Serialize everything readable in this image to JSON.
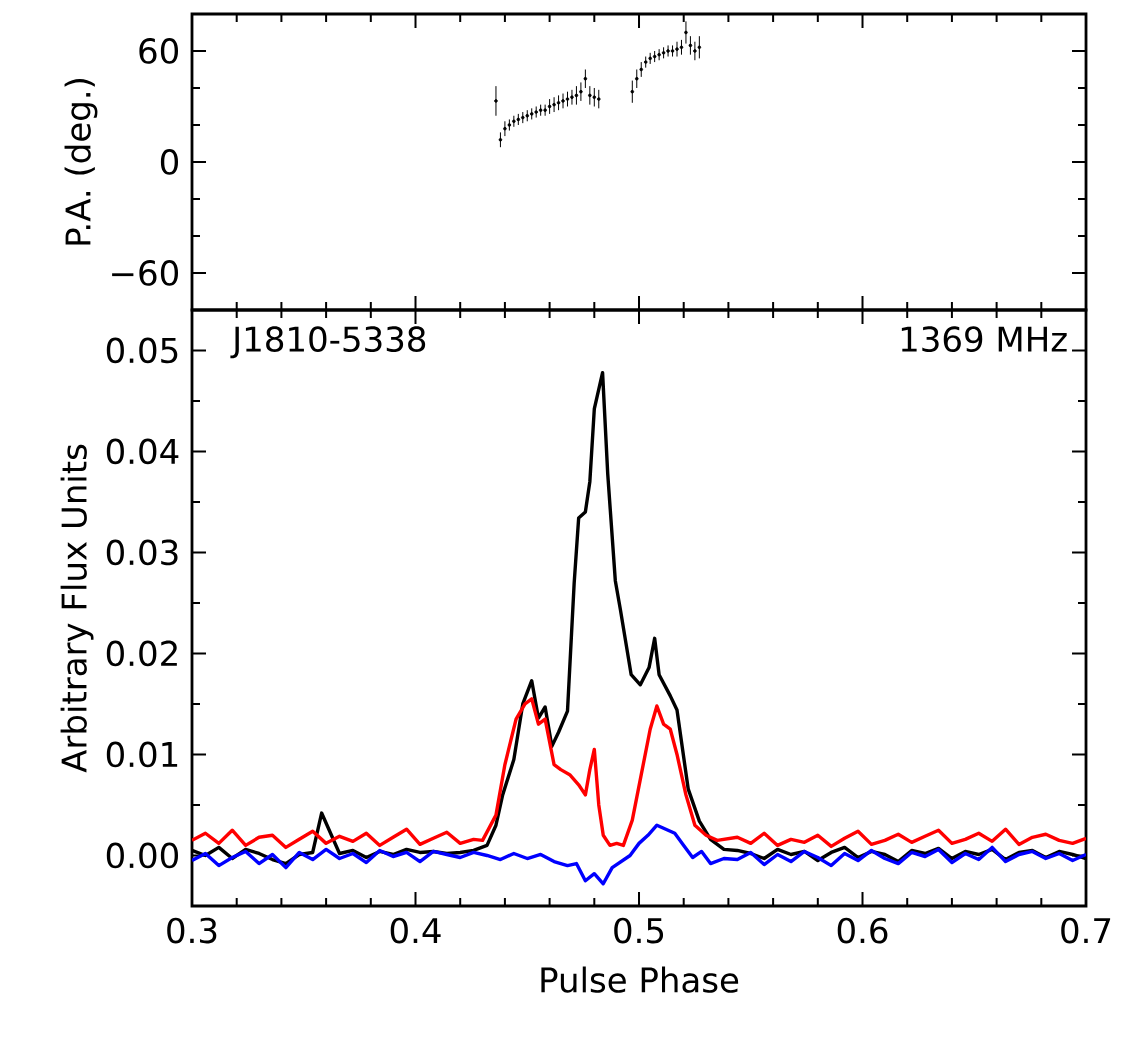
{
  "chart_data": [
    {
      "type": "scatter",
      "ylabel": "P.A. (deg.)",
      "xlim": [
        0.3,
        0.7
      ],
      "ylim": [
        -80,
        80
      ],
      "xticks": [
        0.3,
        0.4,
        0.5,
        0.6,
        0.7
      ],
      "yticks": [
        {
          "value": -60,
          "label": "−60"
        },
        0,
        60
      ],
      "tick_labels": "y",
      "marker": "circle",
      "series": [
        {
          "color": "#000000",
          "x": [
            0.436,
            0.438,
            0.44,
            0.442,
            0.444,
            0.446,
            0.448,
            0.45,
            0.452,
            0.454,
            0.456,
            0.458,
            0.46,
            0.462,
            0.464,
            0.466,
            0.468,
            0.47,
            0.472,
            0.474,
            0.476,
            0.478,
            0.48,
            0.482,
            0.497,
            0.499,
            0.501,
            0.503,
            0.505,
            0.507,
            0.509,
            0.511,
            0.513,
            0.515,
            0.517,
            0.519,
            0.521,
            0.523,
            0.525,
            0.527
          ],
          "values": [
            33,
            12,
            18,
            20,
            22,
            23,
            24,
            25,
            26,
            27,
            28,
            28,
            30,
            31,
            32,
            33,
            34,
            35,
            36,
            38,
            45,
            36,
            35,
            34,
            38,
            45,
            50,
            54,
            56,
            57,
            58,
            59,
            60,
            60,
            61,
            62,
            70,
            63,
            60,
            62
          ],
          "errors": [
            8,
            4,
            4,
            3,
            3,
            3,
            3,
            3,
            3,
            3,
            3,
            3,
            4,
            4,
            4,
            4,
            4,
            4,
            5,
            5,
            5,
            5,
            5,
            5,
            6,
            5,
            4,
            3,
            3,
            3,
            3,
            3,
            3,
            3,
            4,
            4,
            6,
            5,
            5,
            6
          ]
        }
      ]
    },
    {
      "type": "line",
      "xlabel": "Pulse Phase",
      "ylabel": "Arbitrary Flux Units",
      "xlim": [
        0.3,
        0.7
      ],
      "ylim": [
        -0.005,
        0.054
      ],
      "xticks": [
        0.3,
        0.4,
        0.5,
        0.6,
        0.7
      ],
      "yticks": [
        {
          "value": 0,
          "label": "0.00"
        },
        {
          "value": 0.01,
          "label": "0.01"
        },
        {
          "value": 0.02,
          "label": "0.02"
        },
        {
          "value": 0.03,
          "label": "0.03"
        },
        {
          "value": 0.04,
          "label": "0.04"
        },
        {
          "value": 0.05,
          "label": "0.05"
        }
      ],
      "annotations": [
        "J1810-5338",
        "1369 MHz"
      ],
      "marker": "none",
      "line_style": "solid",
      "series": [
        {
          "color": "#000000",
          "x": [
            0.3,
            0.306,
            0.312,
            0.318,
            0.324,
            0.33,
            0.336,
            0.342,
            0.348,
            0.354,
            0.358,
            0.366,
            0.372,
            0.378,
            0.384,
            0.39,
            0.396,
            0.402,
            0.408,
            0.414,
            0.42,
            0.426,
            0.432,
            0.436,
            0.439,
            0.444,
            0.448,
            0.452,
            0.455,
            0.458,
            0.461,
            0.464,
            0.468,
            0.471,
            0.473,
            0.476,
            0.478,
            0.48,
            0.4837,
            0.486,
            0.4894,
            0.4917,
            0.4965,
            0.5006,
            0.5045,
            0.507,
            0.509,
            0.514,
            0.517,
            0.522,
            0.527,
            0.532,
            0.538,
            0.544,
            0.55,
            0.556,
            0.562,
            0.568,
            0.574,
            0.58,
            0.586,
            0.592,
            0.598,
            0.604,
            0.61,
            0.616,
            0.622,
            0.628,
            0.634,
            0.64,
            0.646,
            0.652,
            0.658,
            0.664,
            0.67,
            0.676,
            0.682,
            0.688,
            0.694,
            0.7
          ],
          "values": [
            0.0005,
            0,
            0.0008,
            -0.0003,
            0.0006,
            0.0002,
            -0.0004,
            -0.0008,
            0.0001,
            0.0003,
            0.0042,
            0.0002,
            0.0005,
            -0.0002,
            0.0004,
            0.0001,
            0.0006,
            0.0003,
            0.0004,
            0.0002,
            0.0003,
            0.0005,
            0.001,
            0.003,
            0.006,
            0.0095,
            0.015,
            0.0173,
            0.0136,
            0.0147,
            0.0108,
            0.0122,
            0.0143,
            0.027,
            0.0334,
            0.034,
            0.037,
            0.0442,
            0.0478,
            0.0378,
            0.0272,
            0.0243,
            0.0179,
            0.0169,
            0.0186,
            0.0215,
            0.0179,
            0.0158,
            0.0144,
            0.0066,
            0.0034,
            0.0016,
            0.0006,
            0.0005,
            0.0002,
            -0.0003,
            0.0006,
            0.0001,
            0.0004,
            -0.0005,
            0.0003,
            0.0008,
            -0.0002,
            0.0004,
            0.0001,
            -0.0006,
            0.0005,
            0.0002,
            0.0007,
            -0.0003,
            0.0004,
            0.0001,
            0.0006,
            -0.0004,
            0.0003,
            0.0005,
            -0.0002,
            0.0004,
            0.0001,
            -0.0003
          ]
        },
        {
          "color": "#ff0000",
          "x": [
            0.3,
            0.306,
            0.312,
            0.318,
            0.324,
            0.33,
            0.336,
            0.342,
            0.348,
            0.354,
            0.36,
            0.366,
            0.372,
            0.378,
            0.384,
            0.39,
            0.396,
            0.402,
            0.408,
            0.414,
            0.42,
            0.426,
            0.43,
            0.436,
            0.44,
            0.445,
            0.449,
            0.452,
            0.455,
            0.458,
            0.462,
            0.465,
            0.469,
            0.473,
            0.476,
            0.478,
            0.48,
            0.482,
            0.484,
            0.487,
            0.49,
            0.493,
            0.497,
            0.501,
            0.505,
            0.508,
            0.511,
            0.514,
            0.517,
            0.521,
            0.525,
            0.53,
            0.535,
            0.544,
            0.55,
            0.556,
            0.562,
            0.568,
            0.574,
            0.58,
            0.586,
            0.592,
            0.598,
            0.604,
            0.61,
            0.616,
            0.622,
            0.628,
            0.634,
            0.64,
            0.646,
            0.652,
            0.658,
            0.664,
            0.67,
            0.676,
            0.682,
            0.688,
            0.694,
            0.7
          ],
          "values": [
            0.0015,
            0.0022,
            0.0012,
            0.0025,
            0.001,
            0.0018,
            0.002,
            0.0008,
            0.0016,
            0.0024,
            0.0012,
            0.0019,
            0.0014,
            0.0022,
            0.001,
            0.0018,
            0.0026,
            0.0011,
            0.0017,
            0.0023,
            0.0012,
            0.0016,
            0.0015,
            0.004,
            0.009,
            0.0135,
            0.015,
            0.0155,
            0.013,
            0.0135,
            0.009,
            0.0085,
            0.008,
            0.007,
            0.006,
            0.0085,
            0.0105,
            0.005,
            0.002,
            0.001,
            0.0012,
            0.001,
            0.0035,
            0.008,
            0.0125,
            0.0148,
            0.013,
            0.0125,
            0.01,
            0.006,
            0.003,
            0.002,
            0.0015,
            0.0018,
            0.0012,
            0.0022,
            0.001,
            0.0016,
            0.0013,
            0.002,
            0.0009,
            0.0017,
            0.0024,
            0.0011,
            0.0015,
            0.0021,
            0.0013,
            0.0019,
            0.0025,
            0.0012,
            0.0016,
            0.0022,
            0.0014,
            0.0026,
            0.0011,
            0.0018,
            0.0021,
            0.0015,
            0.0012,
            0.0017
          ]
        },
        {
          "color": "#0000ff",
          "x": [
            0.3,
            0.306,
            0.312,
            0.318,
            0.324,
            0.33,
            0.336,
            0.342,
            0.348,
            0.354,
            0.36,
            0.366,
            0.372,
            0.378,
            0.384,
            0.39,
            0.396,
            0.402,
            0.408,
            0.414,
            0.42,
            0.426,
            0.432,
            0.438,
            0.444,
            0.45,
            0.456,
            0.462,
            0.468,
            0.472,
            0.476,
            0.48,
            0.484,
            0.488,
            0.492,
            0.496,
            0.5,
            0.504,
            0.508,
            0.512,
            0.516,
            0.52,
            0.524,
            0.528,
            0.532,
            0.538,
            0.544,
            0.55,
            0.556,
            0.562,
            0.568,
            0.574,
            0.58,
            0.586,
            0.592,
            0.598,
            0.604,
            0.61,
            0.616,
            0.622,
            0.628,
            0.634,
            0.64,
            0.646,
            0.652,
            0.658,
            0.664,
            0.67,
            0.676,
            0.682,
            0.688,
            0.694,
            0.7
          ],
          "values": [
            -0.0005,
            0.0002,
            -0.001,
            -0.0002,
            0.0004,
            -0.0008,
            0.0001,
            -0.0012,
            0.0003,
            -0.0004,
            0.0006,
            -0.0003,
            0.0002,
            -0.0007,
            0.0005,
            -0.0001,
            0.0003,
            -0.0006,
            0.0004,
            0.0001,
            -0.0002,
            0.0003,
            0.0,
            -0.0004,
            0.0002,
            -0.0003,
            0.0001,
            -0.0006,
            -0.001,
            -0.0008,
            -0.0025,
            -0.0018,
            -0.0028,
            -0.0012,
            -0.0006,
            0.0,
            0.0012,
            0.002,
            0.003,
            0.0026,
            0.0022,
            0.001,
            -0.0002,
            0.0004,
            -0.0008,
            -0.0003,
            -0.0004,
            0.0003,
            -0.0009,
            0.0001,
            -0.0006,
            0.0004,
            -0.0002,
            -0.001,
            0.0002,
            -0.0005,
            0.0005,
            -0.0003,
            -0.0008,
            0.0003,
            -0.0001,
            0.0006,
            -0.0007,
            0.0002,
            -0.0004,
            0.0008,
            -0.0006,
            0.0001,
            0.0004,
            -0.0003,
            0.0002,
            -0.0005,
            0.0001
          ]
        }
      ]
    }
  ]
}
